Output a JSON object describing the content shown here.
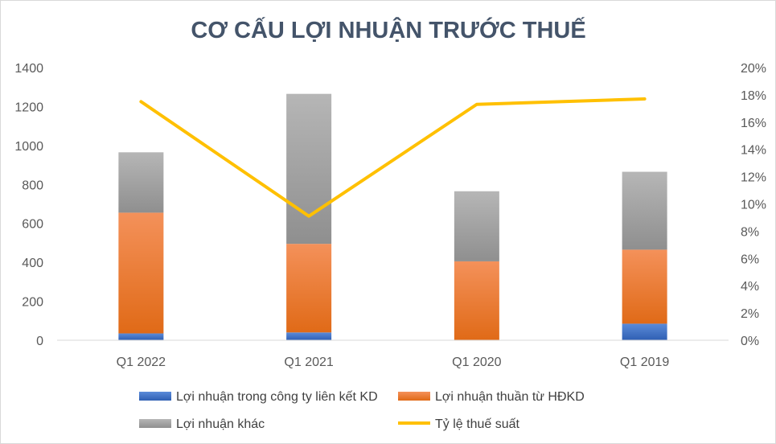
{
  "chart_data": {
    "type": "bar",
    "subtype": "stacked bar with line on secondary axis",
    "title": "CƠ CẤU LỢI NHUẬN TRƯỚC THUẾ",
    "categories": [
      "Q1 2022",
      "Q1 2021",
      "Q1 2020",
      "Q1 2019"
    ],
    "y_ticks": [
      "0",
      "200",
      "400",
      "600",
      "800",
      "1000",
      "1200",
      "1400"
    ],
    "y2_ticks": [
      "0%",
      "2%",
      "4%",
      "6%",
      "8%",
      "10%",
      "12%",
      "14%",
      "16%",
      "18%",
      "20%"
    ],
    "ylim": [
      0,
      1400
    ],
    "y2lim": [
      0,
      0.2
    ],
    "grid": false,
    "legend_position": "bottom",
    "series": [
      {
        "name": "Lợi nhuận trong công ty liên kết KD",
        "type": "bar",
        "stack": "total",
        "color": "#4472c4",
        "values": [
          35,
          40,
          0,
          85
        ]
      },
      {
        "name": "Lợi nhuận thuần từ HĐKD",
        "type": "bar",
        "stack": "total",
        "color": "#ed7d31",
        "values": [
          620,
          455,
          405,
          380
        ]
      },
      {
        "name": "Lợi nhuận khác",
        "type": "bar",
        "stack": "total",
        "color": "#a5a5a5",
        "values": [
          310,
          770,
          360,
          400
        ]
      },
      {
        "name": "Tỷ lệ thuế suất",
        "type": "line",
        "axis": "secondary",
        "color": "#ffc000",
        "values": [
          0.175,
          0.091,
          0.173,
          0.177
        ]
      }
    ]
  }
}
